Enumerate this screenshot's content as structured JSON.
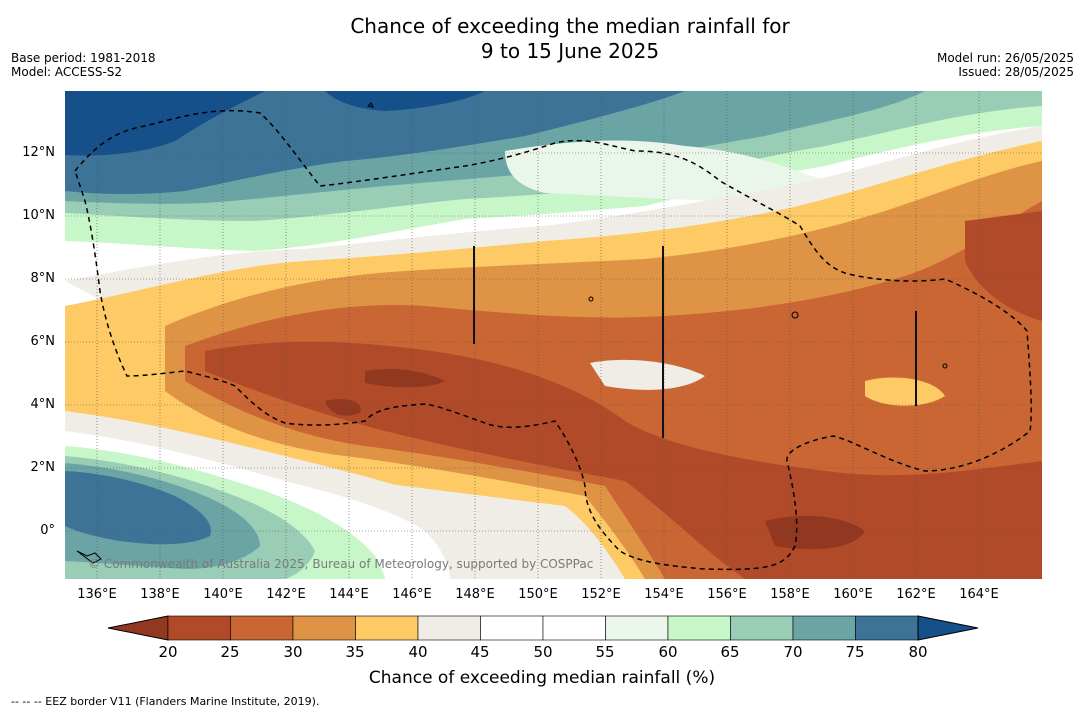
{
  "title_line1": "Chance of exceeding the median rainfall for",
  "title_line2": "9 to 15 June 2025",
  "meta": {
    "base_period": "Base period: 1981-2018",
    "model": "Model: ACCESS-S2",
    "model_run": "Model run: 26/05/2025",
    "issued": "Issued: 28/05/2025"
  },
  "map": {
    "copyright": "© Commonwealth of Australia 2025, Bureau of Meteorology, supported by COSPPac",
    "lat_labels": [
      "12°N",
      "10°N",
      "8°N",
      "6°N",
      "4°N",
      "2°N",
      "0°"
    ],
    "lon_labels": [
      "136°E",
      "138°E",
      "140°E",
      "142°E",
      "144°E",
      "146°E",
      "148°E",
      "150°E",
      "152°E",
      "154°E",
      "156°E",
      "158°E",
      "160°E",
      "162°E",
      "164°E"
    ],
    "colors": {
      "c20": "#923820",
      "c25": "#b14a28",
      "c30": "#c96634",
      "c35": "#df9445",
      "c40": "#fdca66",
      "c45": "#f0ece6",
      "c55": "#ffffff",
      "c60": "#eaf6ea",
      "c65": "#c7f7c8",
      "c70": "#9acdb5",
      "c75": "#6ba4a4",
      "c80": "#3c7397",
      "c85": "#15508a"
    }
  },
  "colorbar": {
    "ticks": [
      "20",
      "25",
      "30",
      "35",
      "40",
      "45",
      "50",
      "55",
      "60",
      "65",
      "70",
      "75",
      "80"
    ],
    "label": "Chance of exceeding median rainfall (%)"
  },
  "footer": "--  --  -- EEZ border V11 (Flanders Marine Institute, 2019)."
}
